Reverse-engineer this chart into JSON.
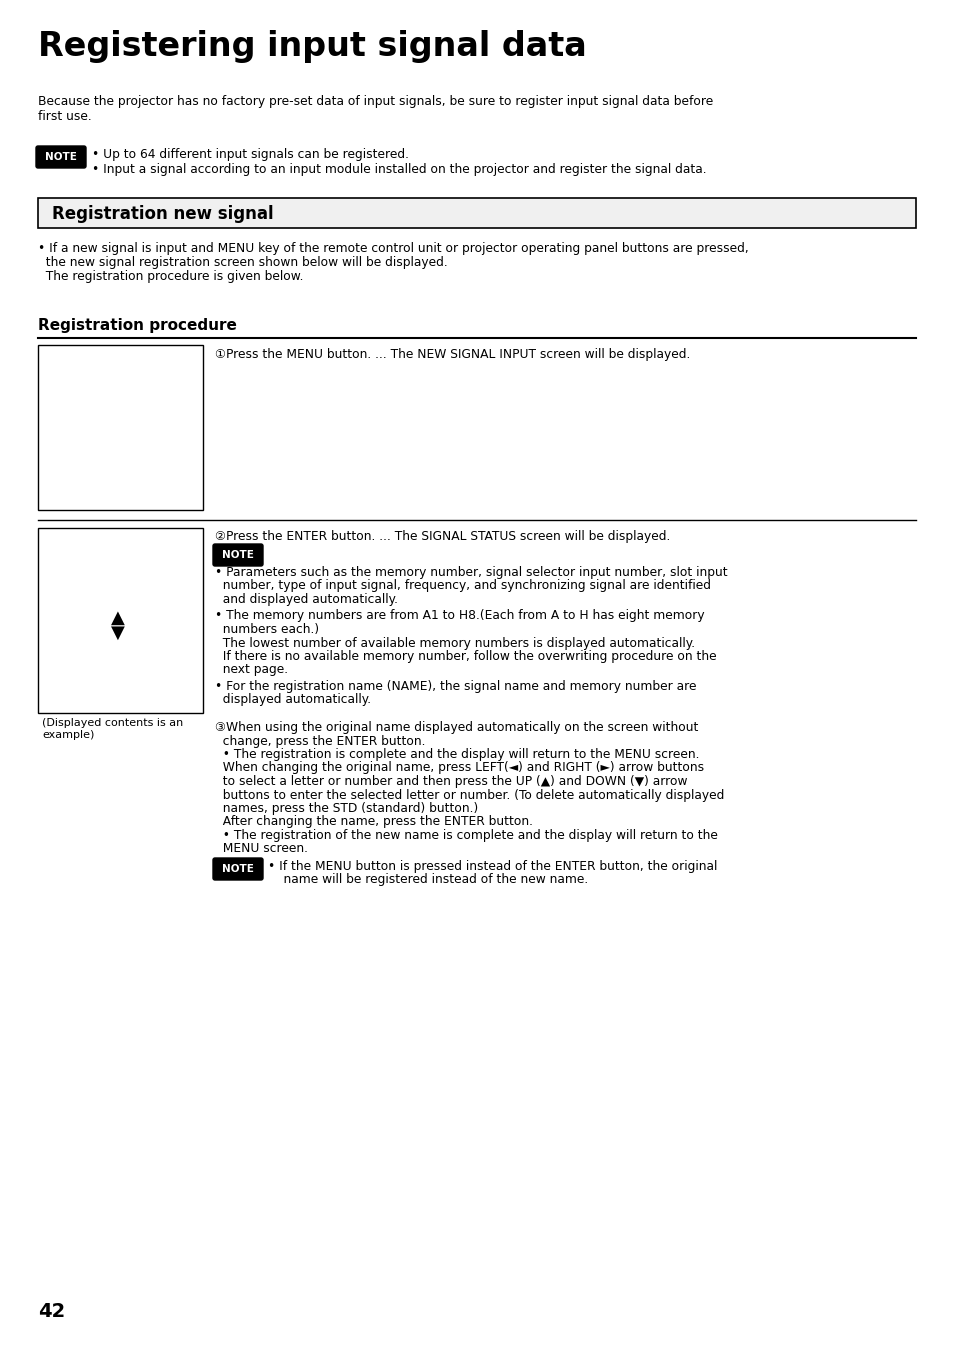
{
  "title": "Registering input signal data",
  "page_number": "42",
  "bg_color": "#ffffff",
  "text_color": "#000000",
  "intro_text": "Because the projector has no factory pre-set data of input signals, be sure to register input signal data before\nfirst use.",
  "note_bullet1": "• Up to 64 different input signals can be registered.",
  "note_bullet2": "• Input a signal according to an input module installed on the projector and register the signal data.",
  "section_header": "Registration new signal",
  "section_body_line1": "• If a new signal is input and MENU key of the remote control unit or projector operating panel buttons are pressed,",
  "section_body_line2": "  the new signal registration screen shown below will be displayed.",
  "section_body_line3": "  The registration procedure is given below.",
  "subsection_header": "Registration procedure",
  "step1_text": "①Press the MENU button. ... The NEW SIGNAL INPUT screen will be displayed.",
  "step2_text": "②Press the ENTER button. ... The SIGNAL STATUS screen will be displayed.",
  "note2_b1_line1": "• Parameters such as the memory number, signal selector input number, slot input",
  "note2_b1_line2": "  number, type of input signal, frequency, and synchronizing signal are identified",
  "note2_b1_line3": "  and displayed automatically.",
  "note2_b2_line1": "• The memory numbers are from A1 to H8.(Each from A to H has eight memory",
  "note2_b2_line2": "  numbers each.)",
  "note2_b2_line3": "  The lowest number of available memory numbers is displayed automatically.",
  "note2_b2_line4": "  If there is no available memory number, follow the overwriting procedure on the",
  "note2_b2_line5": "  next page.",
  "note2_b3_line1": "• For the registration name (NAME), the signal name and memory number are",
  "note2_b3_line2": "  displayed automatically.",
  "step3_line1": "③When using the original name displayed automatically on the screen without",
  "step3_line2": "  change, press the ENTER button.",
  "step3_line3": "  • The registration is complete and the display will return to the MENU screen.",
  "step3_line4": "  When changing the original name, press LEFT(◄) and RIGHT (►) arrow buttons",
  "step3_line5": "  to select a letter or number and then press the UP (▲) and DOWN (▼) arrow",
  "step3_line6": "  buttons to enter the selected letter or number. (To delete automatically displayed",
  "step3_line7": "  names, press the STD (standard) button.)",
  "step3_line8": "  After changing the name, press the ENTER button.",
  "step3_line9": "  • The registration of the new name is complete and the display will return to the",
  "step3_line10": "  MENU screen.",
  "note3_line1": "• If the MENU button is pressed instead of the ENTER button, the original",
  "note3_line2": "    name will be registered instead of the new name.",
  "caption_text": "(Displayed contents is an\nexample)"
}
